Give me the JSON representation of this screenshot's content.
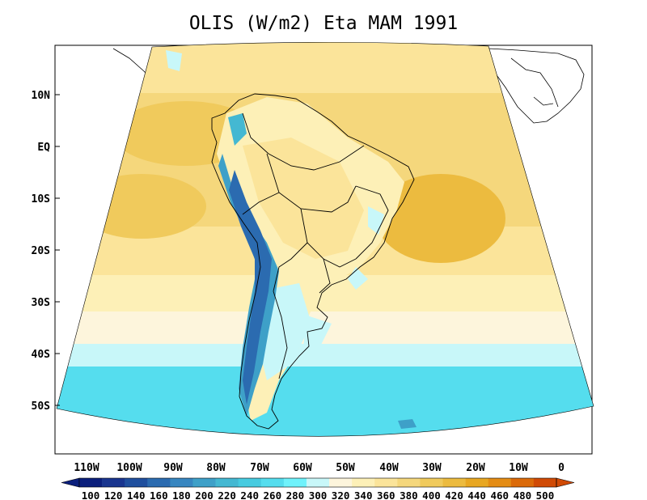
{
  "title": "OLIS (W/m2) Eta MAM 1991",
  "lat_labels": [
    "10N",
    "EQ",
    "10S",
    "20S",
    "30S",
    "40S",
    "50S"
  ],
  "lon_labels": [
    "110W",
    "100W",
    "90W",
    "80W",
    "70W",
    "60W",
    "50W",
    "40W",
    "30W",
    "20W",
    "10W",
    "0"
  ],
  "colorbar": {
    "labels": [
      "100",
      "120",
      "140",
      "160",
      "180",
      "200",
      "220",
      "240",
      "260",
      "280",
      "300",
      "320",
      "340",
      "360",
      "380",
      "400",
      "420",
      "440",
      "460",
      "480",
      "500"
    ],
    "colors": [
      "#0b1f7c",
      "#19358f",
      "#1f4f9e",
      "#2b6bb0",
      "#3786c0",
      "#3ea0c8",
      "#44b8d2",
      "#47cbe0",
      "#55ddee",
      "#6ff2fb",
      "#c8f7f9",
      "#fdf5dc",
      "#fdf0b7",
      "#fbe49a",
      "#f5d77c",
      "#f0ca5c",
      "#ecbb3f",
      "#e8a722",
      "#e48c14",
      "#db6a09",
      "#d04a05"
    ]
  }
}
